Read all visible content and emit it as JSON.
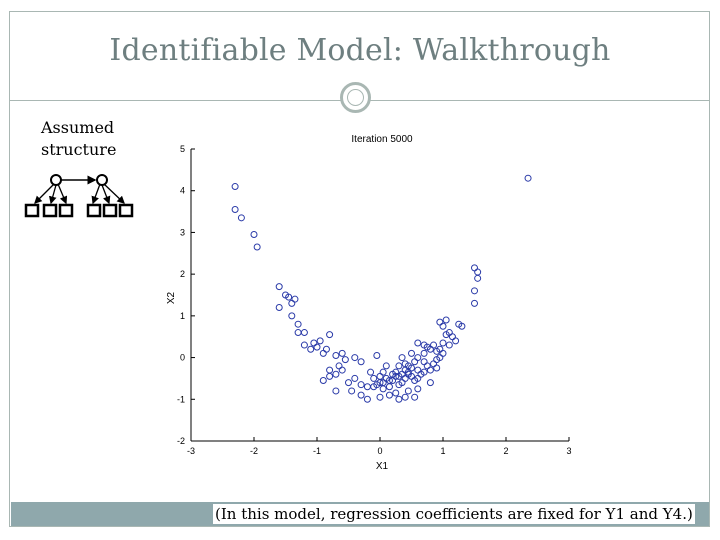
{
  "slide": {
    "title": "Identifiable Model: Walkthrough",
    "assumed_line1": "Assumed",
    "assumed_line2": "structure",
    "footer": "(In this model, regression coefficients are fixed for Y1 and Y4.)"
  },
  "chart_data": {
    "type": "scatter",
    "title": "Iteration 5000",
    "xlabel": "X1",
    "ylabel": "X2",
    "xlim": [
      -3,
      3
    ],
    "ylim": [
      -2,
      5
    ],
    "xticks": [
      "-3",
      "-2",
      "-1",
      "0",
      "1",
      "2",
      "3"
    ],
    "yticks": [
      "-2",
      "-1",
      "0",
      "1",
      "2",
      "3",
      "4",
      "5"
    ],
    "marker_color": "#2a3aa8",
    "points": [
      [
        -2.3,
        4.1
      ],
      [
        -2.3,
        3.55
      ],
      [
        -2.2,
        3.35
      ],
      [
        -2.0,
        2.95
      ],
      [
        -1.95,
        2.65
      ],
      [
        -1.6,
        1.7
      ],
      [
        -1.6,
        1.2
      ],
      [
        -1.5,
        1.5
      ],
      [
        -1.45,
        1.45
      ],
      [
        -1.4,
        1.3
      ],
      [
        -1.35,
        1.4
      ],
      [
        -1.4,
        1.0
      ],
      [
        -1.3,
        0.6
      ],
      [
        -1.2,
        0.6
      ],
      [
        -0.8,
        0.55
      ],
      [
        -1.2,
        0.3
      ],
      [
        -1.1,
        0.2
      ],
      [
        -1.0,
        0.25
      ],
      [
        -0.9,
        0.1
      ],
      [
        -0.85,
        0.2
      ],
      [
        -0.7,
        0.05
      ],
      [
        -0.6,
        0.1
      ],
      [
        -0.55,
        -0.05
      ],
      [
        -0.8,
        -0.3
      ],
      [
        -0.7,
        -0.4
      ],
      [
        -0.6,
        -0.3
      ],
      [
        -0.4,
        0.0
      ],
      [
        -0.3,
        -0.1
      ],
      [
        -0.9,
        -0.55
      ],
      [
        -0.8,
        -0.45
      ],
      [
        -0.5,
        -0.6
      ],
      [
        -0.4,
        -0.5
      ],
      [
        -0.3,
        -0.65
      ],
      [
        -0.2,
        -0.7
      ],
      [
        -0.7,
        -0.8
      ],
      [
        -0.45,
        -0.8
      ],
      [
        -0.3,
        -0.9
      ],
      [
        -0.2,
        -1.0
      ],
      [
        0.0,
        -0.95
      ],
      [
        -0.1,
        -0.5
      ],
      [
        -0.05,
        -0.65
      ],
      [
        -0.15,
        -0.35
      ],
      [
        -0.05,
        0.05
      ],
      [
        0.1,
        -0.2
      ],
      [
        0.0,
        -0.45
      ],
      [
        0.05,
        -0.6
      ],
      [
        0.1,
        -0.5
      ],
      [
        0.15,
        -0.7
      ],
      [
        0.2,
        -0.55
      ],
      [
        0.25,
        -0.45
      ],
      [
        0.05,
        -0.75
      ],
      [
        0.15,
        -0.9
      ],
      [
        0.25,
        -0.85
      ],
      [
        0.3,
        -0.65
      ],
      [
        0.35,
        -0.6
      ],
      [
        0.4,
        -0.5
      ],
      [
        0.45,
        -0.4
      ],
      [
        0.5,
        -0.45
      ],
      [
        0.55,
        -0.55
      ],
      [
        0.6,
        -0.5
      ],
      [
        0.65,
        -0.4
      ],
      [
        0.7,
        -0.35
      ],
      [
        0.3,
        -0.2
      ],
      [
        0.35,
        0.0
      ],
      [
        0.45,
        -0.2
      ],
      [
        0.5,
        -0.25
      ],
      [
        0.55,
        -0.1
      ],
      [
        0.6,
        -0.3
      ],
      [
        0.7,
        -0.1
      ],
      [
        0.75,
        -0.2
      ],
      [
        0.8,
        -0.3
      ],
      [
        0.85,
        -0.15
      ],
      [
        0.9,
        -0.05
      ],
      [
        0.95,
        0.0
      ],
      [
        0.25,
        -0.35
      ],
      [
        0.3,
        -0.45
      ],
      [
        0.4,
        -0.3
      ],
      [
        0.45,
        -0.35
      ],
      [
        0.35,
        -0.4
      ],
      [
        0.45,
        -0.8
      ],
      [
        0.55,
        -0.95
      ],
      [
        0.3,
        -1.0
      ],
      [
        0.4,
        -0.95
      ],
      [
        0.15,
        -0.55
      ],
      [
        0.2,
        -0.4
      ],
      [
        0.05,
        -0.35
      ],
      [
        0.0,
        -0.6
      ],
      [
        -0.1,
        -0.7
      ],
      [
        0.5,
        0.1
      ],
      [
        0.6,
        0.0
      ],
      [
        0.7,
        0.1
      ],
      [
        0.75,
        0.25
      ],
      [
        0.8,
        0.2
      ],
      [
        0.85,
        0.3
      ],
      [
        0.9,
        0.15
      ],
      [
        0.95,
        0.2
      ],
      [
        1.0,
        0.35
      ],
      [
        1.05,
        0.55
      ],
      [
        1.0,
        0.75
      ],
      [
        0.95,
        0.85
      ],
      [
        1.05,
        0.9
      ],
      [
        1.1,
        0.6
      ],
      [
        1.15,
        0.5
      ],
      [
        1.2,
        0.4
      ],
      [
        1.25,
        0.8
      ],
      [
        1.3,
        0.75
      ],
      [
        1.5,
        1.3
      ],
      [
        1.5,
        1.6
      ],
      [
        1.55,
        1.9
      ],
      [
        1.55,
        2.05
      ],
      [
        1.5,
        2.15
      ],
      [
        2.35,
        4.3
      ],
      [
        -1.3,
        0.8
      ],
      [
        -1.05,
        0.35
      ],
      [
        -0.95,
        0.4
      ],
      [
        -0.65,
        -0.2
      ],
      [
        0.6,
        0.35
      ],
      [
        0.7,
        0.3
      ],
      [
        1.1,
        0.3
      ],
      [
        1.0,
        0.1
      ],
      [
        0.9,
        -0.25
      ],
      [
        0.8,
        -0.6
      ],
      [
        0.6,
        -0.75
      ],
      [
        0.4,
        -0.15
      ]
    ]
  }
}
